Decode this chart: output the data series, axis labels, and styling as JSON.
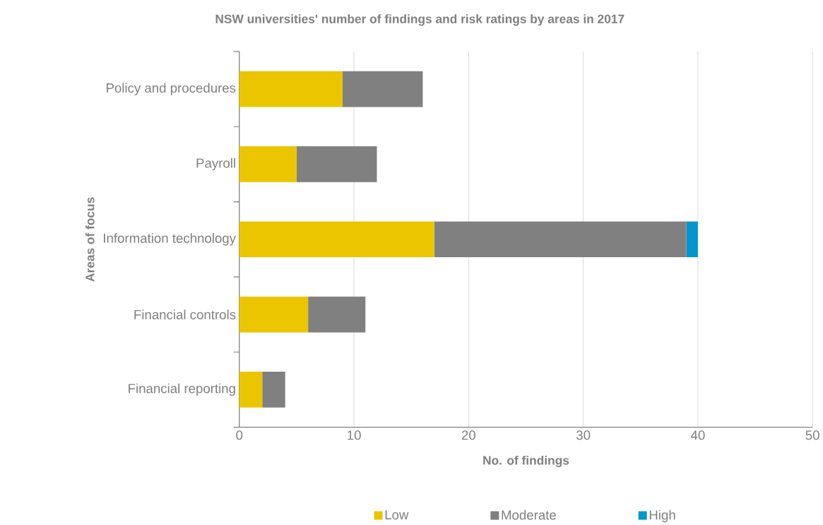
{
  "chart_data": {
    "type": "bar",
    "orientation": "horizontal",
    "stacked": true,
    "title": "NSW universities' number of findings and risk ratings by areas in 2017",
    "xlabel": "No. of findings",
    "ylabel": "Areas of focus",
    "categories": [
      "Policy and procedures",
      "Payroll",
      "Information technology",
      "Financial controls",
      "Financial reporting"
    ],
    "series": [
      {
        "name": "Low",
        "color": "#eac500",
        "values": [
          9,
          5,
          17,
          6,
          2
        ]
      },
      {
        "name": "Moderate",
        "color": "#808080",
        "values": [
          7,
          7,
          22,
          5,
          2
        ]
      },
      {
        "name": "High",
        "color": "#0095cf",
        "values": [
          0,
          0,
          1,
          0,
          0
        ]
      }
    ],
    "xlim": [
      0,
      50
    ],
    "xticks": [
      0,
      10,
      20,
      30,
      40,
      50
    ],
    "grid": "x",
    "legend": "bottom"
  }
}
